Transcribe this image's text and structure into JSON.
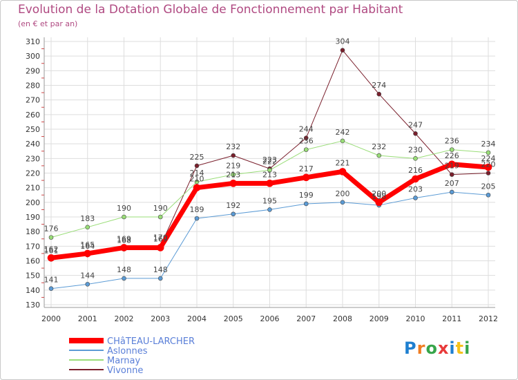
{
  "title": "Evolution de la Dotation Globale de Fonctionnement par Habitant",
  "subtitle": "(en € et par an)",
  "logo": "Proxiti",
  "chart_data": {
    "type": "line",
    "x": [
      "2000",
      "2001",
      "2002",
      "2003",
      "2004",
      "2005",
      "2006",
      "2007",
      "2008",
      "2009",
      "2010",
      "2011",
      "2012"
    ],
    "ylim": [
      130,
      310
    ],
    "yticks": [
      130,
      140,
      150,
      160,
      170,
      180,
      190,
      200,
      210,
      220,
      230,
      240,
      250,
      260,
      270,
      280,
      290,
      300,
      310
    ],
    "grid": true,
    "legend_position": "bottom-left",
    "series": [
      {
        "name": "Vivonne",
        "color": "#7a1f2c",
        "values": [
          161,
          164,
          168,
          170,
          225,
          232,
          223,
          244,
          304,
          274,
          247,
          219,
          220
        ],
        "width": 1
      },
      {
        "name": "Marnay",
        "color": "#99dd77",
        "values": [
          176,
          183,
          190,
          190,
          214,
          219,
          222,
          236,
          242,
          232,
          230,
          236,
          234
        ],
        "width": 1
      },
      {
        "name": "Aslonnes",
        "color": "#5b9bd5",
        "values": [
          141,
          144,
          148,
          148,
          189,
          192,
          195,
          199,
          200,
          198,
          203,
          207,
          205
        ],
        "width": 1
      },
      {
        "name": "CHâTEAU-LARCHER",
        "color": "#ff0000",
        "values": [
          162,
          165,
          169,
          169,
          210,
          213,
          213,
          217,
          221,
          200,
          216,
          226,
          224
        ],
        "width": 7
      }
    ],
    "legend": [
      "CHâTEAU-LARCHER",
      "Aslonnes",
      "Marnay",
      "Vivonne"
    ]
  }
}
